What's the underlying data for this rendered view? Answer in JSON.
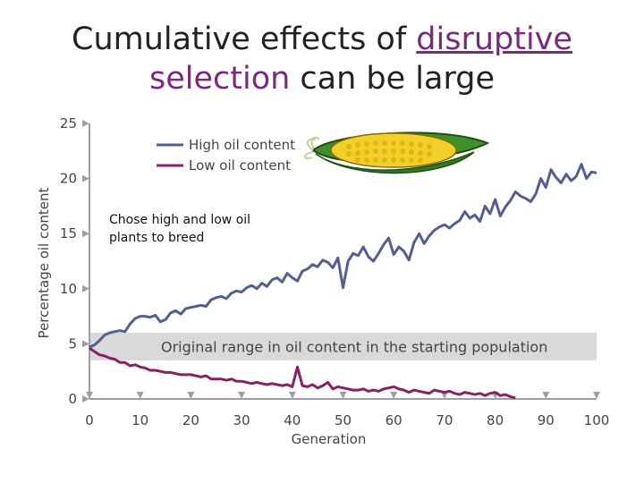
{
  "title": {
    "line1_before": "Cumulative effects of ",
    "line1_accent": "disruptive",
    "line2_accent": "selection",
    "line2_after": " can be large"
  },
  "note": "Chose high and low oil\nplants to breed",
  "icons": [
    "corn-icon"
  ],
  "colors": {
    "high": "#555e93",
    "low": "#8a2160",
    "band": "#d9d9d9",
    "accent": "#7a2a7e"
  },
  "chart_data": {
    "type": "line",
    "xlabel": "Generation",
    "ylabel": "Percentage oil content",
    "xlim": [
      0,
      100
    ],
    "ylim": [
      0,
      25
    ],
    "xticks": [
      0,
      10,
      20,
      30,
      40,
      50,
      60,
      70,
      80,
      90,
      100
    ],
    "yticks": [
      0,
      5,
      10,
      15,
      20,
      25
    ],
    "grid": false,
    "legend": "top-left",
    "band": {
      "from": 3.5,
      "to": 6,
      "label": "Original range in oil content in the starting population"
    },
    "series": [
      {
        "name": "High oil content",
        "color": "#555e93",
        "x": [
          0,
          1,
          2,
          3,
          4,
          5,
          6,
          7,
          8,
          9,
          10,
          11,
          12,
          13,
          14,
          15,
          16,
          17,
          18,
          19,
          20,
          21,
          22,
          23,
          24,
          25,
          26,
          27,
          28,
          29,
          30,
          31,
          32,
          33,
          34,
          35,
          36,
          37,
          38,
          39,
          40,
          41,
          42,
          43,
          44,
          45,
          46,
          47,
          48,
          49,
          50,
          51,
          52,
          53,
          54,
          55,
          56,
          57,
          58,
          59,
          60,
          61,
          62,
          63,
          64,
          65,
          66,
          67,
          68,
          69,
          70,
          71,
          72,
          73,
          74,
          75,
          76,
          77,
          78,
          79,
          80,
          81,
          82,
          83,
          84,
          85,
          86,
          87,
          88,
          89,
          90,
          91,
          92,
          93,
          94,
          95,
          96,
          97,
          98,
          99,
          100
        ],
        "values": [
          4.7,
          4.9,
          5.3,
          5.8,
          6.0,
          6.1,
          6.2,
          6.1,
          6.8,
          7.3,
          7.5,
          7.5,
          7.4,
          7.6,
          7.0,
          7.2,
          7.8,
          8.0,
          7.7,
          8.2,
          8.3,
          8.4,
          8.5,
          8.4,
          9.0,
          9.2,
          9.3,
          9.1,
          9.6,
          9.8,
          9.7,
          10.1,
          10.3,
          10.0,
          10.5,
          10.2,
          10.8,
          11.0,
          10.6,
          11.4,
          11.0,
          10.7,
          11.6,
          11.8,
          12.2,
          12.0,
          12.6,
          12.4,
          11.9,
          12.8,
          10.1,
          12.5,
          13.2,
          13.0,
          13.8,
          12.9,
          12.5,
          13.2,
          14.0,
          14.6,
          13.1,
          13.8,
          13.4,
          12.6,
          14.2,
          15.0,
          14.1,
          14.8,
          15.3,
          15.6,
          15.8,
          15.5,
          15.9,
          16.2,
          17.0,
          16.4,
          16.7,
          16.1,
          17.5,
          16.8,
          18.1,
          16.6,
          17.4,
          18.0,
          18.8,
          18.4,
          18.2,
          17.9,
          18.6,
          20.0,
          19.2,
          20.8,
          20.1,
          19.6,
          20.4,
          19.8,
          20.2,
          21.3,
          20.0,
          20.6,
          20.5
        ]
      },
      {
        "name": "Low oil content",
        "color": "#8a2160",
        "x": [
          0,
          1,
          2,
          3,
          4,
          5,
          6,
          7,
          8,
          9,
          10,
          11,
          12,
          13,
          14,
          15,
          16,
          17,
          18,
          19,
          20,
          21,
          22,
          23,
          24,
          25,
          26,
          27,
          28,
          29,
          30,
          31,
          32,
          33,
          34,
          35,
          36,
          37,
          38,
          39,
          40,
          41,
          42,
          43,
          44,
          45,
          46,
          47,
          48,
          49,
          50,
          51,
          52,
          53,
          54,
          55,
          56,
          57,
          58,
          59,
          60,
          61,
          62,
          63,
          64,
          65,
          66,
          67,
          68,
          69,
          70,
          71,
          72,
          73,
          74,
          75,
          76,
          77,
          78,
          79,
          80,
          81,
          82,
          83,
          84
        ],
        "values": [
          4.6,
          4.3,
          4.0,
          3.9,
          3.7,
          3.6,
          3.3,
          3.3,
          3.0,
          3.1,
          2.9,
          2.8,
          2.6,
          2.6,
          2.5,
          2.4,
          2.4,
          2.3,
          2.2,
          2.2,
          2.2,
          2.1,
          2.0,
          2.1,
          1.8,
          1.8,
          1.8,
          1.7,
          1.8,
          1.6,
          1.6,
          1.5,
          1.4,
          1.5,
          1.4,
          1.3,
          1.4,
          1.3,
          1.2,
          1.3,
          1.1,
          2.9,
          1.2,
          1.1,
          1.3,
          1.0,
          1.2,
          1.5,
          0.9,
          1.1,
          1.0,
          0.9,
          0.8,
          0.8,
          0.9,
          0.7,
          0.8,
          0.7,
          0.9,
          1.0,
          1.1,
          0.9,
          0.8,
          0.6,
          0.8,
          0.7,
          0.6,
          0.5,
          0.8,
          0.7,
          0.6,
          0.7,
          0.5,
          0.4,
          0.6,
          0.5,
          0.4,
          0.5,
          0.3,
          0.5,
          0.6,
          0.3,
          0.4,
          0.2,
          0.1
        ]
      }
    ]
  }
}
